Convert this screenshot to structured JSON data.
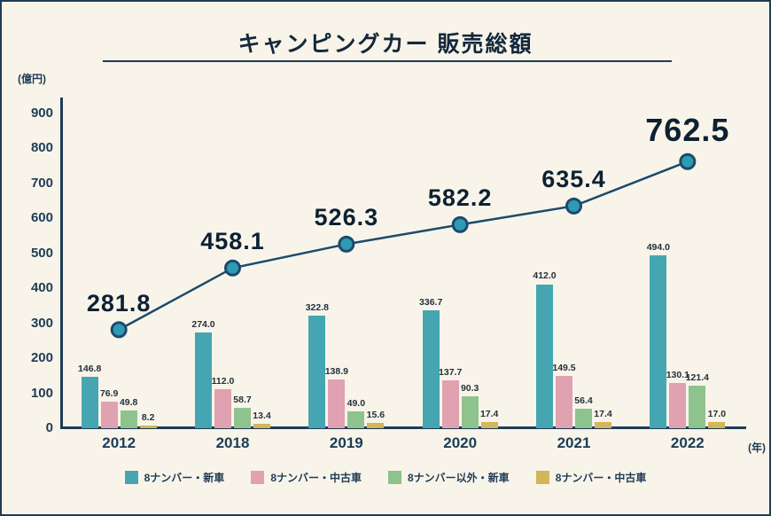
{
  "title": "キャンピングカー 販売総額",
  "y_axis_unit": "(億円)",
  "x_axis_unit": "(年)",
  "legend": [
    {
      "label": "8ナンバー・新車",
      "color": "#45a6b1"
    },
    {
      "label": "8ナンバー・中古車",
      "color": "#e0a1b1"
    },
    {
      "label": "8ナンバー以外・新車",
      "color": "#8fc38d"
    },
    {
      "label": "8ナンバー・中古車",
      "color": "#d3b55a"
    }
  ],
  "chart_data": {
    "type": "bar+line",
    "title": "キャンピングカー 販売総額",
    "xlabel": "(年)",
    "ylabel": "(億円)",
    "categories": [
      "2012",
      "2018",
      "2019",
      "2020",
      "2021",
      "2022"
    ],
    "series": [
      {
        "name": "8ナンバー・新車",
        "type": "bar",
        "color": "#45a6b1",
        "values": [
          146.8,
          274.0,
          322.8,
          336.7,
          412.0,
          494.0
        ]
      },
      {
        "name": "8ナンバー・中古車",
        "type": "bar",
        "color": "#e0a1b1",
        "values": [
          76.9,
          112.0,
          138.9,
          137.7,
          149.5,
          130.1
        ]
      },
      {
        "name": "8ナンバー以外・新車",
        "type": "bar",
        "color": "#8fc38d",
        "values": [
          49.8,
          58.7,
          49.0,
          90.3,
          56.4,
          121.4
        ]
      },
      {
        "name": "8ナンバー・中古車",
        "type": "bar",
        "color": "#d3b55a",
        "values": [
          8.2,
          13.4,
          15.6,
          17.4,
          17.4,
          17.0
        ]
      },
      {
        "name": "販売総額",
        "type": "line",
        "color": "#1c4a6e",
        "marker_color": "#2f9bb3",
        "values": [
          281.8,
          458.1,
          526.3,
          582.2,
          635.4,
          762.5
        ]
      }
    ],
    "ylim": [
      0,
      900
    ],
    "yticks": [
      0,
      100,
      200,
      300,
      400,
      500,
      600,
      700,
      800,
      900
    ],
    "grid": false,
    "legend_position": "bottom"
  }
}
